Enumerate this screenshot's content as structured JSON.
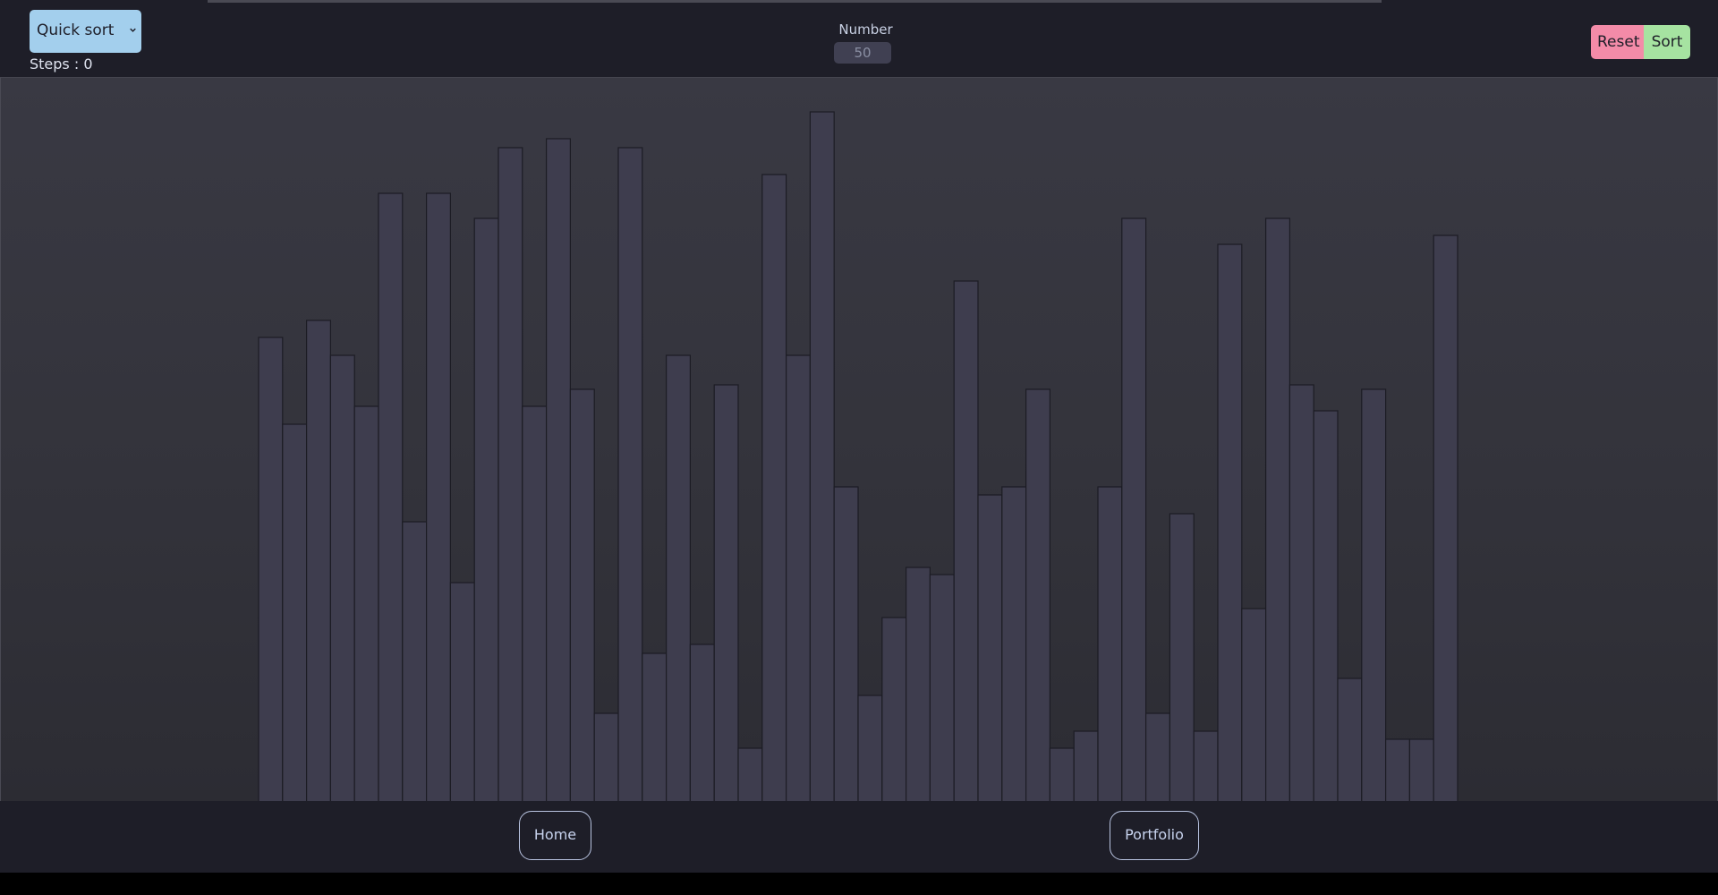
{
  "controls": {
    "algorithm": "Quick sort",
    "steps_text": "Steps : 0",
    "number_label": "Number",
    "number_value": "50",
    "reset_label": "Reset",
    "sort_label": "Sort"
  },
  "colors": {
    "bar_fill": "#3e3d4e",
    "bar_stroke": "#1c1c24",
    "reset": "#f38ba8",
    "sort": "#a6e3a1",
    "select": "#a3cfed"
  },
  "chart_data": {
    "type": "bar",
    "values": [
      518,
      421,
      537,
      498,
      441,
      679,
      312,
      679,
      244,
      651,
      730,
      441,
      740,
      460,
      98,
      730,
      165,
      498,
      175,
      465,
      59,
      700,
      498,
      770,
      351,
      118,
      205,
      261,
      253,
      581,
      342,
      351,
      460,
      59,
      78,
      351,
      651,
      98,
      321,
      78,
      622,
      215,
      651,
      465,
      436,
      137,
      460,
      69,
      69,
      632
    ],
    "ylim": [
      0,
      808
    ]
  },
  "footer": {
    "home_label": "Home",
    "portfolio_label": "Portfolio"
  }
}
